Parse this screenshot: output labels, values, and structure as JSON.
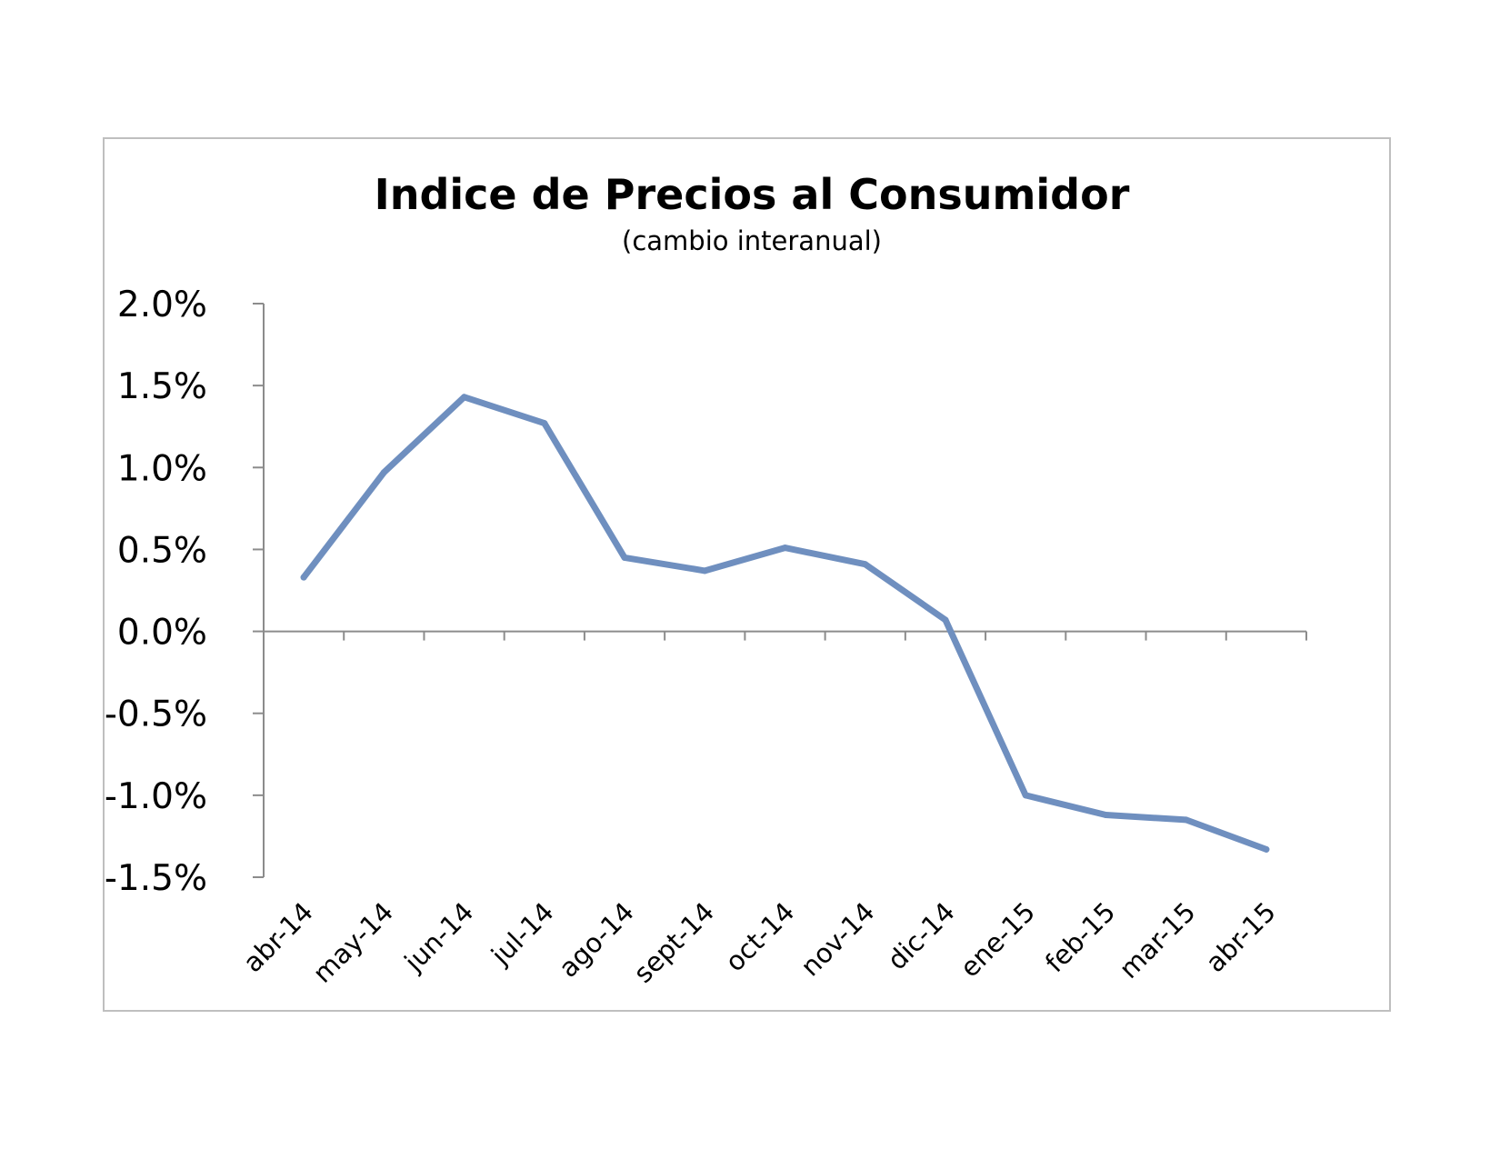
{
  "chart_data": {
    "type": "line",
    "title": "Indice de Precios al Consumidor",
    "subtitle": "(cambio interanual)",
    "categories": [
      "abr-14",
      "may-14",
      "jun-14",
      "jul-14",
      "ago-14",
      "sept-14",
      "oct-14",
      "nov-14",
      "dic-14",
      "ene-15",
      "feb-15",
      "mar-15",
      "abr-15"
    ],
    "series": [
      {
        "values": [
          0.33,
          0.97,
          1.43,
          1.27,
          0.45,
          0.37,
          0.51,
          0.41,
          0.07,
          -1.0,
          -1.12,
          -1.15,
          -1.33
        ]
      }
    ],
    "ylim": [
      -1.5,
      2.0
    ],
    "yticks": [
      2.0,
      1.5,
      1.0,
      0.5,
      0.0,
      -0.5,
      -1.0,
      -1.5
    ],
    "ytick_labels": [
      "2.0%",
      "1.5%",
      "1.0%",
      "0.5%",
      "0.0%",
      "-0.5%",
      "-1.0%",
      "-1.5%"
    ],
    "grid": false,
    "legend": "none",
    "line_color": "#6f8fbf"
  }
}
